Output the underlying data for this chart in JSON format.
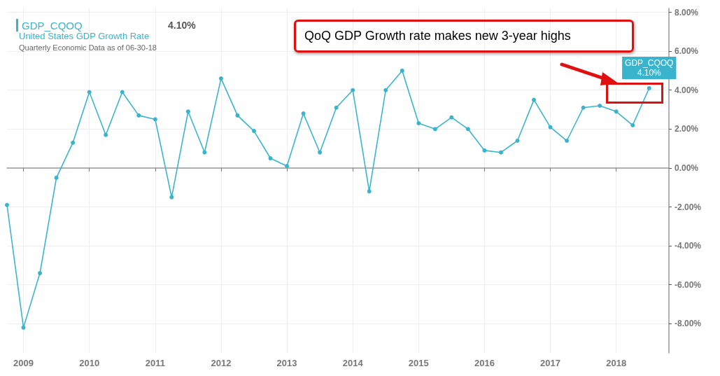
{
  "chart_data": {
    "type": "line",
    "title": "United States GDP Growth Rate",
    "subtitle": "Quarterly Economic Data as of 06-30-18",
    "annotations": [
      "QoQ GDP Growth rate makes new 3-year highs"
    ],
    "series": [
      {
        "name": "GDP_CQOQ",
        "color": "#3ab4cc",
        "x": [
          2008.75,
          2009,
          2009.25,
          2009.5,
          2009.75,
          2010,
          2010.25,
          2010.5,
          2010.75,
          2011,
          2011.25,
          2011.5,
          2011.75,
          2012,
          2012.25,
          2012.5,
          2012.75,
          2013,
          2013.25,
          2013.5,
          2013.75,
          2014,
          2014.25,
          2014.5,
          2014.75,
          2015,
          2015.25,
          2015.5,
          2015.75,
          2016,
          2016.25,
          2016.5,
          2016.75,
          2017,
          2017.25,
          2017.5,
          2017.75,
          2018,
          2018.25,
          2018.5
        ],
        "values": [
          -1.9,
          -8.2,
          -5.4,
          -0.5,
          1.3,
          3.9,
          1.7,
          3.9,
          2.7,
          2.5,
          -1.5,
          2.9,
          0.8,
          4.6,
          2.7,
          1.9,
          0.5,
          0.1,
          2.8,
          0.8,
          3.1,
          4.0,
          -1.2,
          4.0,
          5.0,
          2.3,
          2.0,
          2.6,
          2.0,
          0.9,
          0.8,
          1.4,
          3.5,
          2.1,
          1.4,
          3.1,
          3.2,
          2.9,
          2.2,
          4.1
        ],
        "value_labels": [
          null,
          null,
          null,
          null,
          null,
          null,
          null,
          null,
          null,
          null,
          null,
          null,
          null,
          null,
          null,
          null,
          null,
          null,
          null,
          null,
          null,
          null,
          null,
          null,
          null,
          null,
          null,
          null,
          null,
          null,
          null,
          null,
          null,
          null,
          null,
          null,
          null,
          null,
          null,
          "4.10%"
        ]
      }
    ],
    "xlim": [
      2008.75,
      2018.8
    ],
    "xticks": [
      2009,
      2010,
      2011,
      2012,
      2013,
      2014,
      2015,
      2016,
      2017,
      2018
    ],
    "ylim": [
      -9.5,
      8.2
    ],
    "yticks": [
      {
        "value": -8,
        "label": "-8.00%"
      },
      {
        "value": -6,
        "label": "-6.00%"
      },
      {
        "value": -4,
        "label": "-4.00%"
      },
      {
        "value": -2,
        "label": "-2.00%"
      },
      {
        "value": 0,
        "label": "0.00%"
      },
      {
        "value": 2,
        "label": "2.00%"
      },
      {
        "value": 4,
        "label": "4.00%"
      },
      {
        "value": 6,
        "label": "6.00%"
      },
      {
        "value": 8,
        "label": "8.00%"
      }
    ],
    "grid": true,
    "legend": "top left",
    "marker": "circle",
    "line_style": "solid"
  }
}
